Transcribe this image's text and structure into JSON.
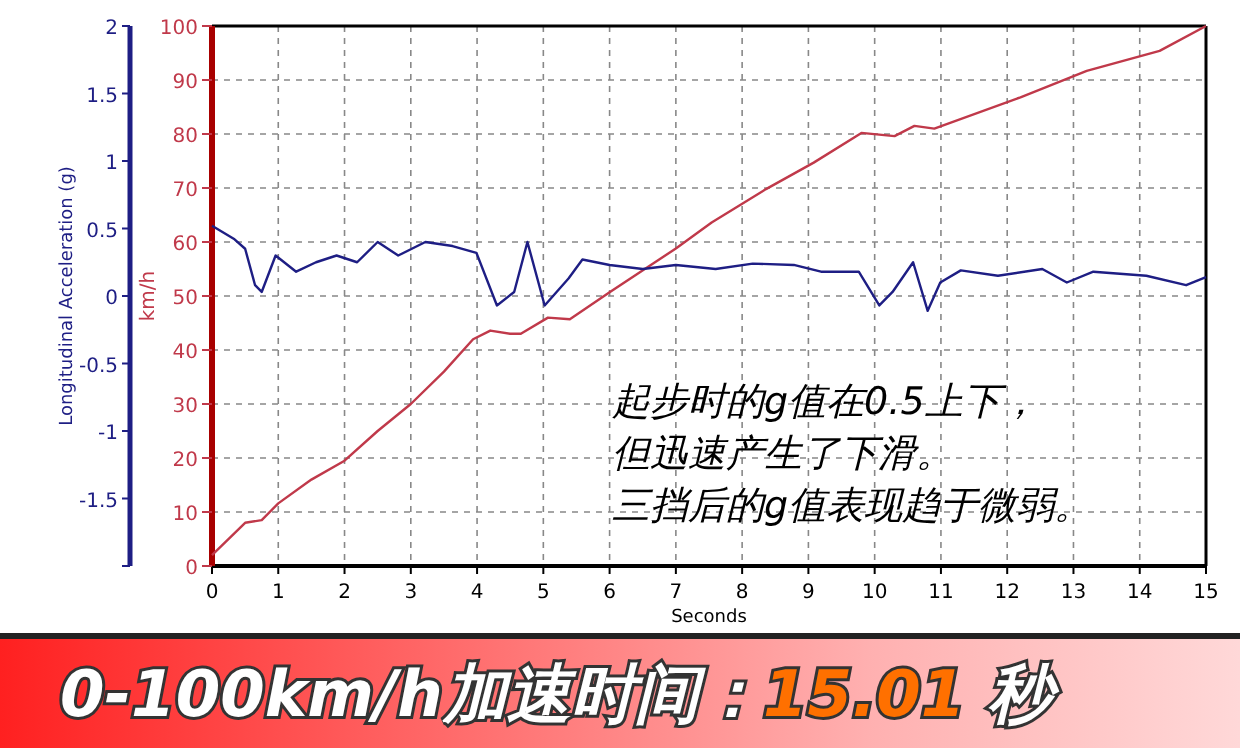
{
  "chart_data": {
    "type": "line",
    "xlabel": "Seconds",
    "ylabel": "km/h",
    "y2label": "Longitudinal Acceleration (g)",
    "xlim": [
      0,
      15
    ],
    "xticks": [
      0,
      1,
      2,
      3,
      4,
      5,
      6,
      7,
      8,
      9,
      10,
      11,
      12,
      13,
      14,
      15
    ],
    "ylim": [
      0,
      100
    ],
    "yticks": [
      0,
      10,
      20,
      30,
      40,
      50,
      60,
      70,
      80,
      90,
      100
    ],
    "y2lim": [
      -2,
      2
    ],
    "y2ticks": [
      {
        "value": -2,
        "label": null
      },
      -1.5,
      -1,
      -0.5,
      0,
      0.5,
      1,
      1.5,
      2
    ],
    "grid": true,
    "series": [
      {
        "color": "#c0394a",
        "x": [
          0,
          0.5,
          0.75,
          1,
          1.5,
          2,
          2.5,
          3,
          3.5,
          3.94,
          4.2,
          4.5,
          4.66,
          5.07,
          5.4,
          6,
          7,
          7.54,
          8.36,
          9.08,
          9.8,
          10.3,
          10.6,
          10.9,
          12.2,
          13.2,
          14.3,
          15
        ],
        "values": [
          2,
          8,
          8.5,
          11.6,
          16,
          19.5,
          25,
          30,
          36,
          42,
          43.6,
          43,
          43,
          46,
          45.7,
          50.7,
          58.8,
          63.6,
          69.8,
          74.7,
          80.2,
          79.6,
          81.5,
          81,
          86.8,
          91.7,
          95.4,
          100
        ]
      },
      {
        "color": "#1e1e84",
        "axis": "y2",
        "x": [
          0,
          0.34,
          0.5,
          0.65,
          0.75,
          0.96,
          1.27,
          1.57,
          1.88,
          2.19,
          2.5,
          2.81,
          3.22,
          3.63,
          3.99,
          4.3,
          4.56,
          4.76,
          5.02,
          5.38,
          5.59,
          6,
          6.5,
          7,
          7.6,
          8.16,
          8.78,
          9.19,
          9.76,
          10.07,
          10.27,
          10.58,
          10.8,
          10.99,
          11.3,
          11.86,
          12.53,
          12.9,
          13.3,
          14.1,
          14.7,
          15
        ],
        "values": [
          0.52,
          0.42,
          0.35,
          0.08,
          0.03,
          0.3,
          0.18,
          0.25,
          0.3,
          0.25,
          0.4,
          0.3,
          0.4,
          0.37,
          0.32,
          -0.07,
          0.03,
          0.4,
          -0.07,
          0.13,
          0.27,
          0.23,
          0.2,
          0.23,
          0.2,
          0.24,
          0.23,
          0.18,
          0.18,
          -0.07,
          0.03,
          0.25,
          -0.11,
          0.1,
          0.19,
          0.15,
          0.2,
          0.1,
          0.18,
          0.15,
          0.08,
          0.14
        ]
      }
    ],
    "annotations": [
      "起步时的g值在0.5上下，",
      "但迅速产生了下滑。",
      "三挡后的g值表现趋于微弱。",
      "0-100km/h加速时间：15.01 秒"
    ]
  }
}
